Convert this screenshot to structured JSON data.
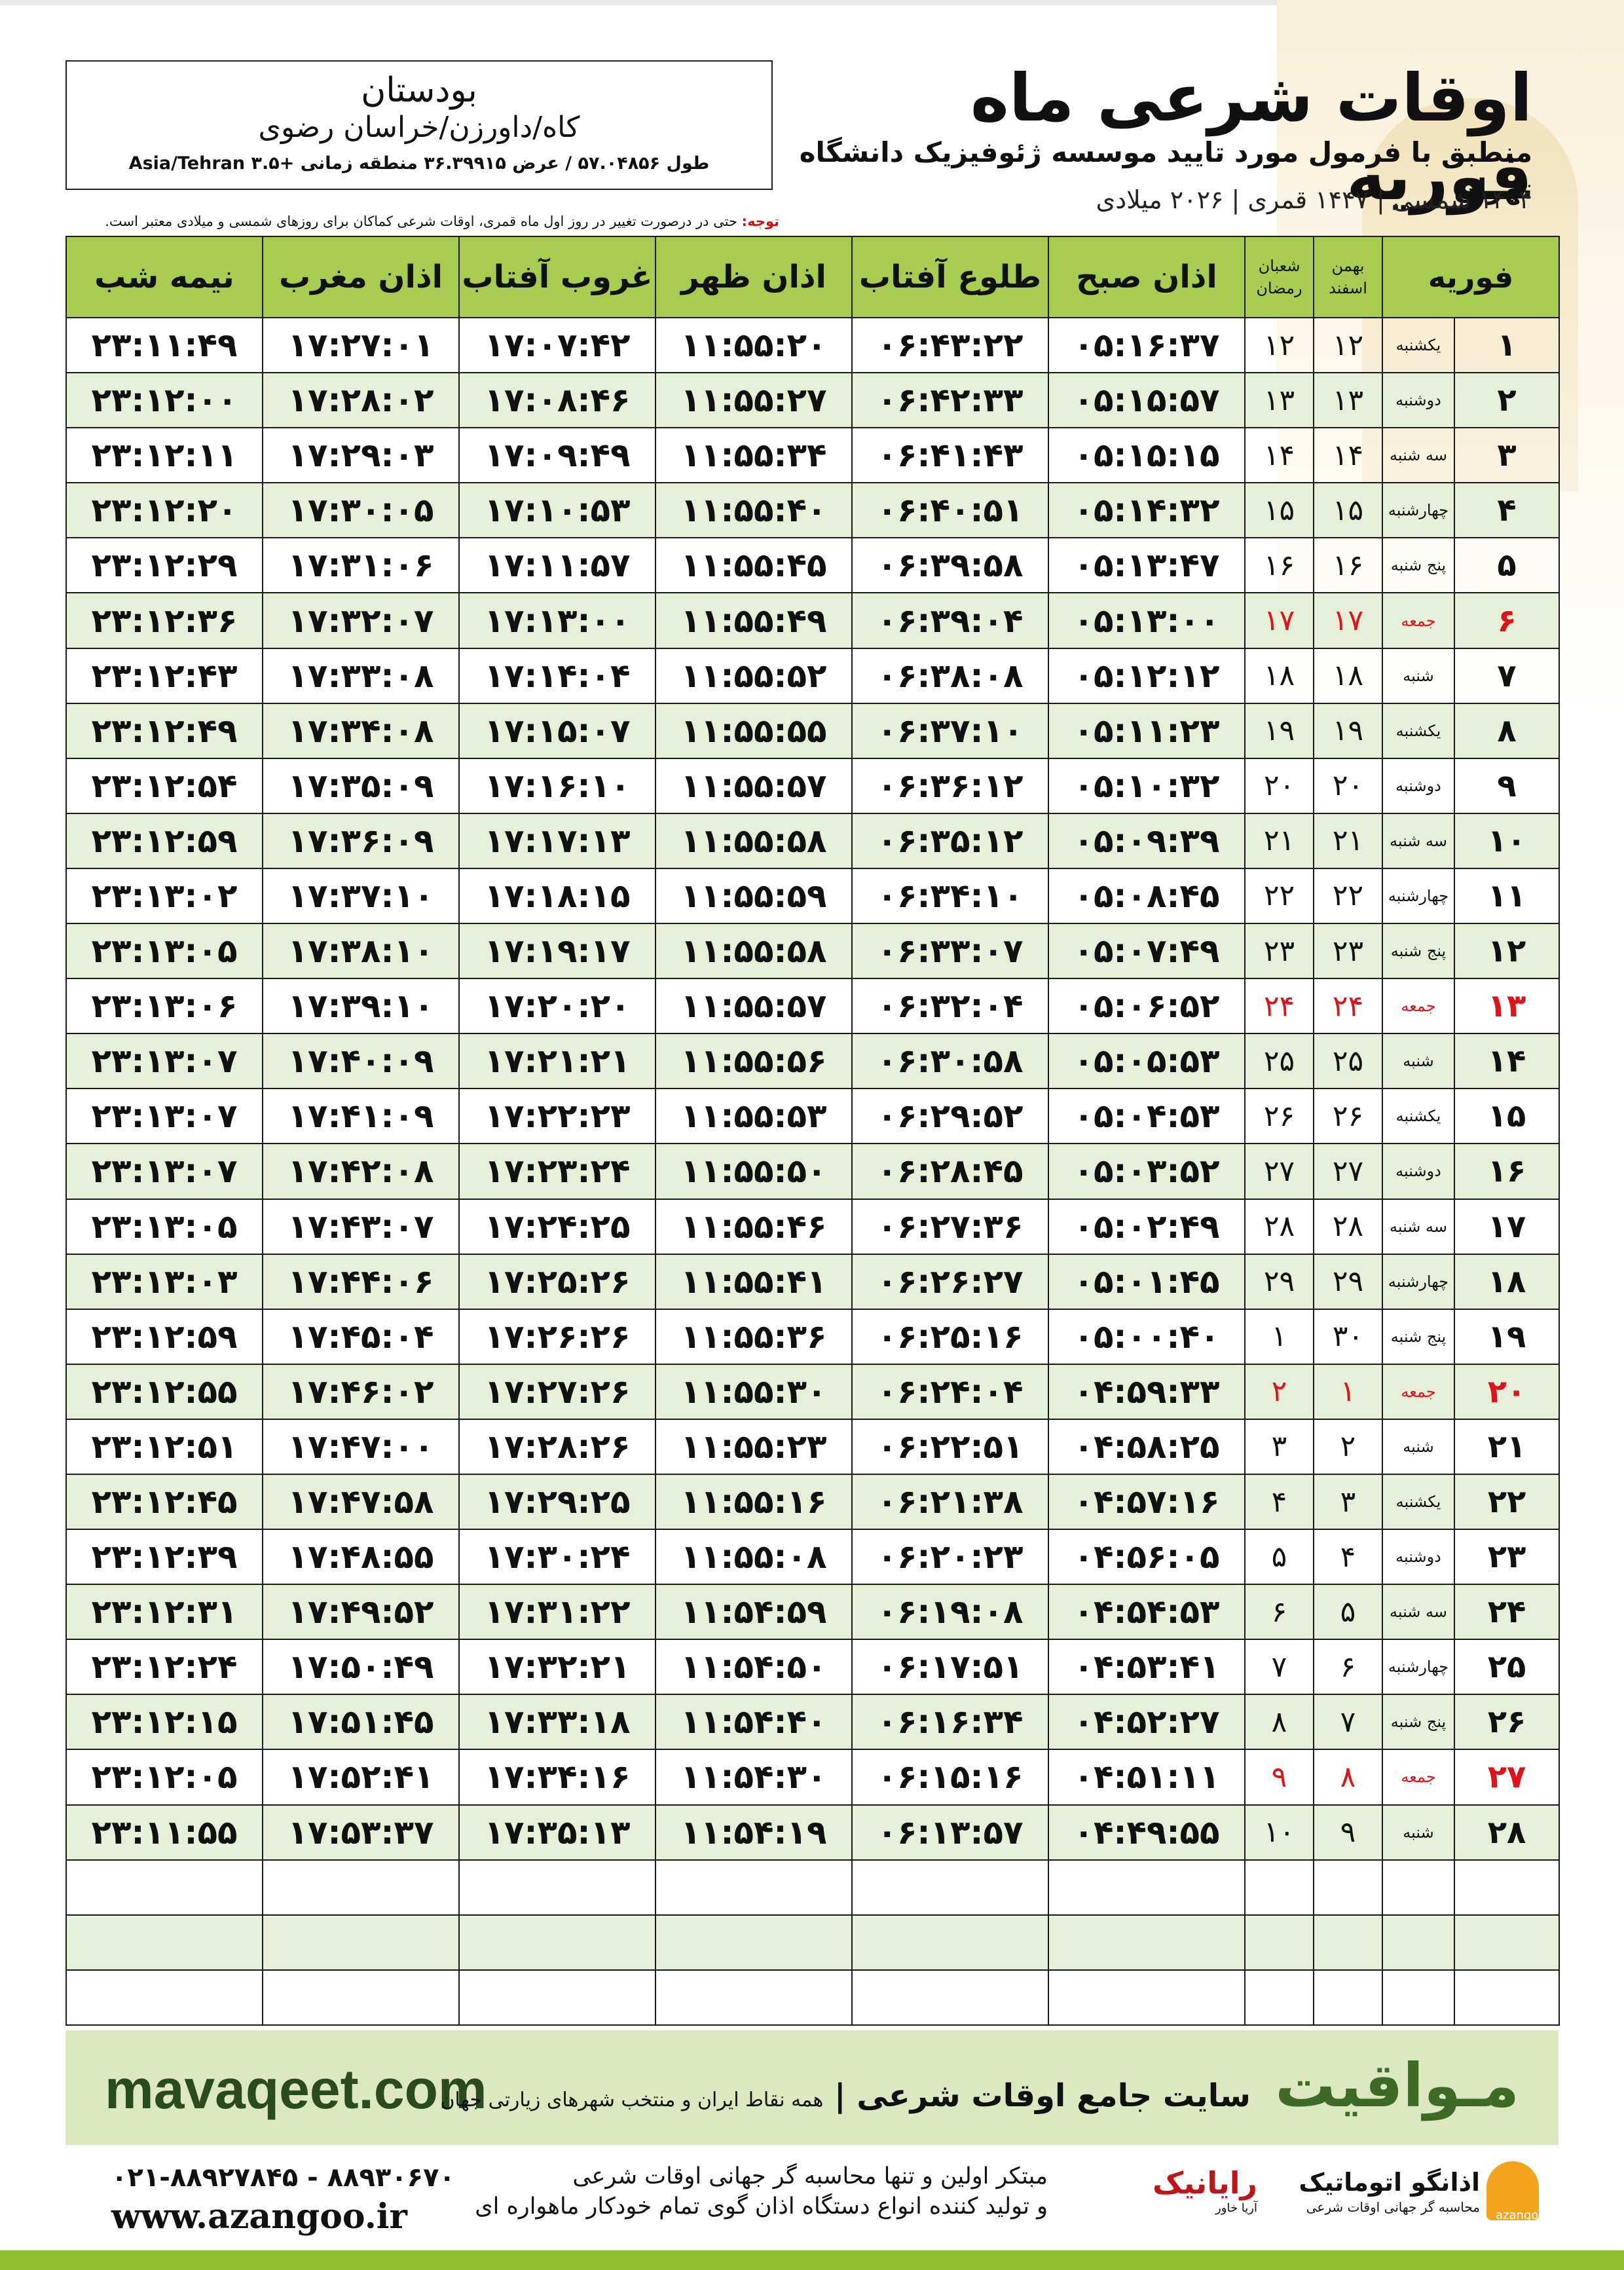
{
  "header": {
    "title": "اوقات شرعی ماه فوریه",
    "subtitle": "منطبق با فرمول مورد تایید موسسه ژئوفیزیک دانشگاه تهران",
    "dates": "۱۴۰۴ شمسی | ۱۴۴۷ قمری | ۲۰۲۶ میلادی"
  },
  "location": {
    "city": "بودستان",
    "path": "کاه/داورزن/خراسان رضوی",
    "coords": "طول ۵۷.۰۴۸۵۶ / عرض ۳۶.۳۹۹۱۵ منطقه زمانی +۳.۵ Asia/Tehran"
  },
  "note": {
    "label": "توجه:",
    "text": "حتی در درصورت تغییر در روز اول ماه قمری، اوقات شرعی کماکان برای روزهای شمسی و میلادی معتبر است."
  },
  "table": {
    "headers": {
      "month": "فوریه",
      "solar_top": "بهمن",
      "solar_bottom": "اسفند",
      "lunar_top": "شعبان",
      "lunar_bottom": "رمضان",
      "fajr": "اذان صبح",
      "sunrise": "طلوع آفتاب",
      "dhuhr": "اذان ظهر",
      "sunset": "غروب آفتاب",
      "maghrib": "اذان مغرب",
      "midnight": "نیمه شب"
    },
    "rows": [
      {
        "day": "۱",
        "weekday": "یکشنبه",
        "solar": "۱۲",
        "lunar": "۱۲",
        "fajr": "۰۵:۱۶:۳۷",
        "sunrise": "۰۶:۴۳:۲۲",
        "dhuhr": "۱۱:۵۵:۲۰",
        "sunset": "۱۷:۰۷:۴۲",
        "maghrib": "۱۷:۲۷:۰۱",
        "midnight": "۲۳:۱۱:۴۹"
      },
      {
        "day": "۲",
        "weekday": "دوشنبه",
        "solar": "۱۳",
        "lunar": "۱۳",
        "fajr": "۰۵:۱۵:۵۷",
        "sunrise": "۰۶:۴۲:۳۳",
        "dhuhr": "۱۱:۵۵:۲۷",
        "sunset": "۱۷:۰۸:۴۶",
        "maghrib": "۱۷:۲۸:۰۲",
        "midnight": "۲۳:۱۲:۰۰"
      },
      {
        "day": "۳",
        "weekday": "سه شنبه",
        "solar": "۱۴",
        "lunar": "۱۴",
        "fajr": "۰۵:۱۵:۱۵",
        "sunrise": "۰۶:۴۱:۴۳",
        "dhuhr": "۱۱:۵۵:۳۴",
        "sunset": "۱۷:۰۹:۴۹",
        "maghrib": "۱۷:۲۹:۰۳",
        "midnight": "۲۳:۱۲:۱۱"
      },
      {
        "day": "۴",
        "weekday": "چهارشنبه",
        "solar": "۱۵",
        "lunar": "۱۵",
        "fajr": "۰۵:۱۴:۳۲",
        "sunrise": "۰۶:۴۰:۵۱",
        "dhuhr": "۱۱:۵۵:۴۰",
        "sunset": "۱۷:۱۰:۵۳",
        "maghrib": "۱۷:۳۰:۰۵",
        "midnight": "۲۳:۱۲:۲۰"
      },
      {
        "day": "۵",
        "weekday": "پنج شنبه",
        "solar": "۱۶",
        "lunar": "۱۶",
        "fajr": "۰۵:۱۳:۴۷",
        "sunrise": "۰۶:۳۹:۵۸",
        "dhuhr": "۱۱:۵۵:۴۵",
        "sunset": "۱۷:۱۱:۵۷",
        "maghrib": "۱۷:۳۱:۰۶",
        "midnight": "۲۳:۱۲:۲۹"
      },
      {
        "day": "۶",
        "weekday": "جمعه",
        "solar": "۱۷",
        "lunar": "۱۷",
        "fajr": "۰۵:۱۳:۰۰",
        "sunrise": "۰۶:۳۹:۰۴",
        "dhuhr": "۱۱:۵۵:۴۹",
        "sunset": "۱۷:۱۳:۰۰",
        "maghrib": "۱۷:۳۲:۰۷",
        "midnight": "۲۳:۱۲:۳۶",
        "friday": true
      },
      {
        "day": "۷",
        "weekday": "شنبه",
        "solar": "۱۸",
        "lunar": "۱۸",
        "fajr": "۰۵:۱۲:۱۲",
        "sunrise": "۰۶:۳۸:۰۸",
        "dhuhr": "۱۱:۵۵:۵۲",
        "sunset": "۱۷:۱۴:۰۴",
        "maghrib": "۱۷:۳۳:۰۸",
        "midnight": "۲۳:۱۲:۴۳"
      },
      {
        "day": "۸",
        "weekday": "یکشنبه",
        "solar": "۱۹",
        "lunar": "۱۹",
        "fajr": "۰۵:۱۱:۲۳",
        "sunrise": "۰۶:۳۷:۱۰",
        "dhuhr": "۱۱:۵۵:۵۵",
        "sunset": "۱۷:۱۵:۰۷",
        "maghrib": "۱۷:۳۴:۰۸",
        "midnight": "۲۳:۱۲:۴۹"
      },
      {
        "day": "۹",
        "weekday": "دوشنبه",
        "solar": "۲۰",
        "lunar": "۲۰",
        "fajr": "۰۵:۱۰:۳۲",
        "sunrise": "۰۶:۳۶:۱۲",
        "dhuhr": "۱۱:۵۵:۵۷",
        "sunset": "۱۷:۱۶:۱۰",
        "maghrib": "۱۷:۳۵:۰۹",
        "midnight": "۲۳:۱۲:۵۴"
      },
      {
        "day": "۱۰",
        "weekday": "سه شنبه",
        "solar": "۲۱",
        "lunar": "۲۱",
        "fajr": "۰۵:۰۹:۳۹",
        "sunrise": "۰۶:۳۵:۱۲",
        "dhuhr": "۱۱:۵۵:۵۸",
        "sunset": "۱۷:۱۷:۱۳",
        "maghrib": "۱۷:۳۶:۰۹",
        "midnight": "۲۳:۱۲:۵۹"
      },
      {
        "day": "۱۱",
        "weekday": "چهارشنبه",
        "solar": "۲۲",
        "lunar": "۲۲",
        "fajr": "۰۵:۰۸:۴۵",
        "sunrise": "۰۶:۳۴:۱۰",
        "dhuhr": "۱۱:۵۵:۵۹",
        "sunset": "۱۷:۱۸:۱۵",
        "maghrib": "۱۷:۳۷:۱۰",
        "midnight": "۲۳:۱۳:۰۲"
      },
      {
        "day": "۱۲",
        "weekday": "پنج شنبه",
        "solar": "۲۳",
        "lunar": "۲۳",
        "fajr": "۰۵:۰۷:۴۹",
        "sunrise": "۰۶:۳۳:۰۷",
        "dhuhr": "۱۱:۵۵:۵۸",
        "sunset": "۱۷:۱۹:۱۷",
        "maghrib": "۱۷:۳۸:۱۰",
        "midnight": "۲۳:۱۳:۰۵"
      },
      {
        "day": "۱۳",
        "weekday": "جمعه",
        "solar": "۲۴",
        "lunar": "۲۴",
        "fajr": "۰۵:۰۶:۵۲",
        "sunrise": "۰۶:۳۲:۰۴",
        "dhuhr": "۱۱:۵۵:۵۷",
        "sunset": "۱۷:۲۰:۲۰",
        "maghrib": "۱۷:۳۹:۱۰",
        "midnight": "۲۳:۱۳:۰۶",
        "friday": true
      },
      {
        "day": "۱۴",
        "weekday": "شنبه",
        "solar": "۲۵",
        "lunar": "۲۵",
        "fajr": "۰۵:۰۵:۵۳",
        "sunrise": "۰۶:۳۰:۵۸",
        "dhuhr": "۱۱:۵۵:۵۶",
        "sunset": "۱۷:۲۱:۲۱",
        "maghrib": "۱۷:۴۰:۰۹",
        "midnight": "۲۳:۱۳:۰۷"
      },
      {
        "day": "۱۵",
        "weekday": "یکشنبه",
        "solar": "۲۶",
        "lunar": "۲۶",
        "fajr": "۰۵:۰۴:۵۳",
        "sunrise": "۰۶:۲۹:۵۲",
        "dhuhr": "۱۱:۵۵:۵۳",
        "sunset": "۱۷:۲۲:۲۳",
        "maghrib": "۱۷:۴۱:۰۹",
        "midnight": "۲۳:۱۳:۰۷"
      },
      {
        "day": "۱۶",
        "weekday": "دوشنبه",
        "solar": "۲۷",
        "lunar": "۲۷",
        "fajr": "۰۵:۰۳:۵۲",
        "sunrise": "۰۶:۲۸:۴۵",
        "dhuhr": "۱۱:۵۵:۵۰",
        "sunset": "۱۷:۲۳:۲۴",
        "maghrib": "۱۷:۴۲:۰۸",
        "midnight": "۲۳:۱۳:۰۷"
      },
      {
        "day": "۱۷",
        "weekday": "سه شنبه",
        "solar": "۲۸",
        "lunar": "۲۸",
        "fajr": "۰۵:۰۲:۴۹",
        "sunrise": "۰۶:۲۷:۳۶",
        "dhuhr": "۱۱:۵۵:۴۶",
        "sunset": "۱۷:۲۴:۲۵",
        "maghrib": "۱۷:۴۳:۰۷",
        "midnight": "۲۳:۱۳:۰۵"
      },
      {
        "day": "۱۸",
        "weekday": "چهارشنبه",
        "solar": "۲۹",
        "lunar": "۲۹",
        "fajr": "۰۵:۰۱:۴۵",
        "sunrise": "۰۶:۲۶:۲۷",
        "dhuhr": "۱۱:۵۵:۴۱",
        "sunset": "۱۷:۲۵:۲۶",
        "maghrib": "۱۷:۴۴:۰۶",
        "midnight": "۲۳:۱۳:۰۳"
      },
      {
        "day": "۱۹",
        "weekday": "پنج شنبه",
        "solar": "۳۰",
        "lunar": "۱",
        "fajr": "۰۵:۰۰:۴۰",
        "sunrise": "۰۶:۲۵:۱۶",
        "dhuhr": "۱۱:۵۵:۳۶",
        "sunset": "۱۷:۲۶:۲۶",
        "maghrib": "۱۷:۴۵:۰۴",
        "midnight": "۲۳:۱۲:۵۹",
        "lunar_light": true
      },
      {
        "day": "۲۰",
        "weekday": "جمعه",
        "solar": "۱",
        "lunar": "۲",
        "fajr": "۰۴:۵۹:۳۳",
        "sunrise": "۰۶:۲۴:۰۴",
        "dhuhr": "۱۱:۵۵:۳۰",
        "sunset": "۱۷:۲۷:۲۶",
        "maghrib": "۱۷:۴۶:۰۲",
        "midnight": "۲۳:۱۲:۵۵",
        "friday": true,
        "light": true
      },
      {
        "day": "۲۱",
        "weekday": "شنبه",
        "solar": "۲",
        "lunar": "۳",
        "fajr": "۰۴:۵۸:۲۵",
        "sunrise": "۰۶:۲۲:۵۱",
        "dhuhr": "۱۱:۵۵:۲۳",
        "sunset": "۱۷:۲۸:۲۶",
        "maghrib": "۱۷:۴۷:۰۰",
        "midnight": "۲۳:۱۲:۵۱",
        "light": true
      },
      {
        "day": "۲۲",
        "weekday": "یکشنبه",
        "solar": "۳",
        "lunar": "۴",
        "fajr": "۰۴:۵۷:۱۶",
        "sunrise": "۰۶:۲۱:۳۸",
        "dhuhr": "۱۱:۵۵:۱۶",
        "sunset": "۱۷:۲۹:۲۵",
        "maghrib": "۱۷:۴۷:۵۸",
        "midnight": "۲۳:۱۲:۴۵",
        "light": true
      },
      {
        "day": "۲۳",
        "weekday": "دوشنبه",
        "solar": "۴",
        "lunar": "۵",
        "fajr": "۰۴:۵۶:۰۵",
        "sunrise": "۰۶:۲۰:۲۳",
        "dhuhr": "۱۱:۵۵:۰۸",
        "sunset": "۱۷:۳۰:۲۴",
        "maghrib": "۱۷:۴۸:۵۵",
        "midnight": "۲۳:۱۲:۳۹",
        "light": true
      },
      {
        "day": "۲۴",
        "weekday": "سه شنبه",
        "solar": "۵",
        "lunar": "۶",
        "fajr": "۰۴:۵۴:۵۳",
        "sunrise": "۰۶:۱۹:۰۸",
        "dhuhr": "۱۱:۵۴:۵۹",
        "sunset": "۱۷:۳۱:۲۲",
        "maghrib": "۱۷:۴۹:۵۲",
        "midnight": "۲۳:۱۲:۳۱",
        "light": true
      },
      {
        "day": "۲۵",
        "weekday": "چهارشنبه",
        "solar": "۶",
        "lunar": "۷",
        "fajr": "۰۴:۵۳:۴۱",
        "sunrise": "۰۶:۱۷:۵۱",
        "dhuhr": "۱۱:۵۴:۵۰",
        "sunset": "۱۷:۳۲:۲۱",
        "maghrib": "۱۷:۵۰:۴۹",
        "midnight": "۲۳:۱۲:۲۴",
        "light": true
      },
      {
        "day": "۲۶",
        "weekday": "پنج شنبه",
        "solar": "۷",
        "lunar": "۸",
        "fajr": "۰۴:۵۲:۲۷",
        "sunrise": "۰۶:۱۶:۳۴",
        "dhuhr": "۱۱:۵۴:۴۰",
        "sunset": "۱۷:۳۳:۱۸",
        "maghrib": "۱۷:۵۱:۴۵",
        "midnight": "۲۳:۱۲:۱۵",
        "light": true
      },
      {
        "day": "۲۷",
        "weekday": "جمعه",
        "solar": "۸",
        "lunar": "۹",
        "fajr": "۰۴:۵۱:۱۱",
        "sunrise": "۰۶:۱۵:۱۶",
        "dhuhr": "۱۱:۵۴:۳۰",
        "sunset": "۱۷:۳۴:۱۶",
        "maghrib": "۱۷:۵۲:۴۱",
        "midnight": "۲۳:۱۲:۰۵",
        "friday": true,
        "light": true
      },
      {
        "day": "۲۸",
        "weekday": "شنبه",
        "solar": "۹",
        "lunar": "۱۰",
        "fajr": "۰۴:۴۹:۵۵",
        "sunrise": "۰۶:۱۳:۵۷",
        "dhuhr": "۱۱:۵۴:۱۹",
        "sunset": "۱۷:۳۵:۱۳",
        "maghrib": "۱۷:۵۳:۳۷",
        "midnight": "۲۳:۱۱:۵۵",
        "light": true
      }
    ]
  },
  "footer": {
    "site": "mavaqeet.com",
    "brand": "مـواقیت",
    "banner_title": "سایت جامع اوقات شرعی",
    "banner_sub": "همه نقاط ایران و منتخب شهرهای زیارتی جهان",
    "phone": "۰۲۱-۸۸۹۲۷۸۴۵ - ۸۸۹۳۰۶۷۰",
    "web": "www.azangoo.ir",
    "about_line1": "مبتکر اولین و تنها محاسبه گر جهانی اوقات شرعی",
    "about_line2": "و تولید کننده انواع دستگاه اذان گوی تمام خودکار ماهواره ای",
    "logo_rayanik": "رایانیک",
    "logo_rayanik_sub": "آریا خاور",
    "logo_azangoo": "اذانگو اتوماتیک",
    "logo_azangoo_tag": "محاسبه گر جهانی اوقات شرعی",
    "logo_azangoo_en": "azangoo"
  }
}
